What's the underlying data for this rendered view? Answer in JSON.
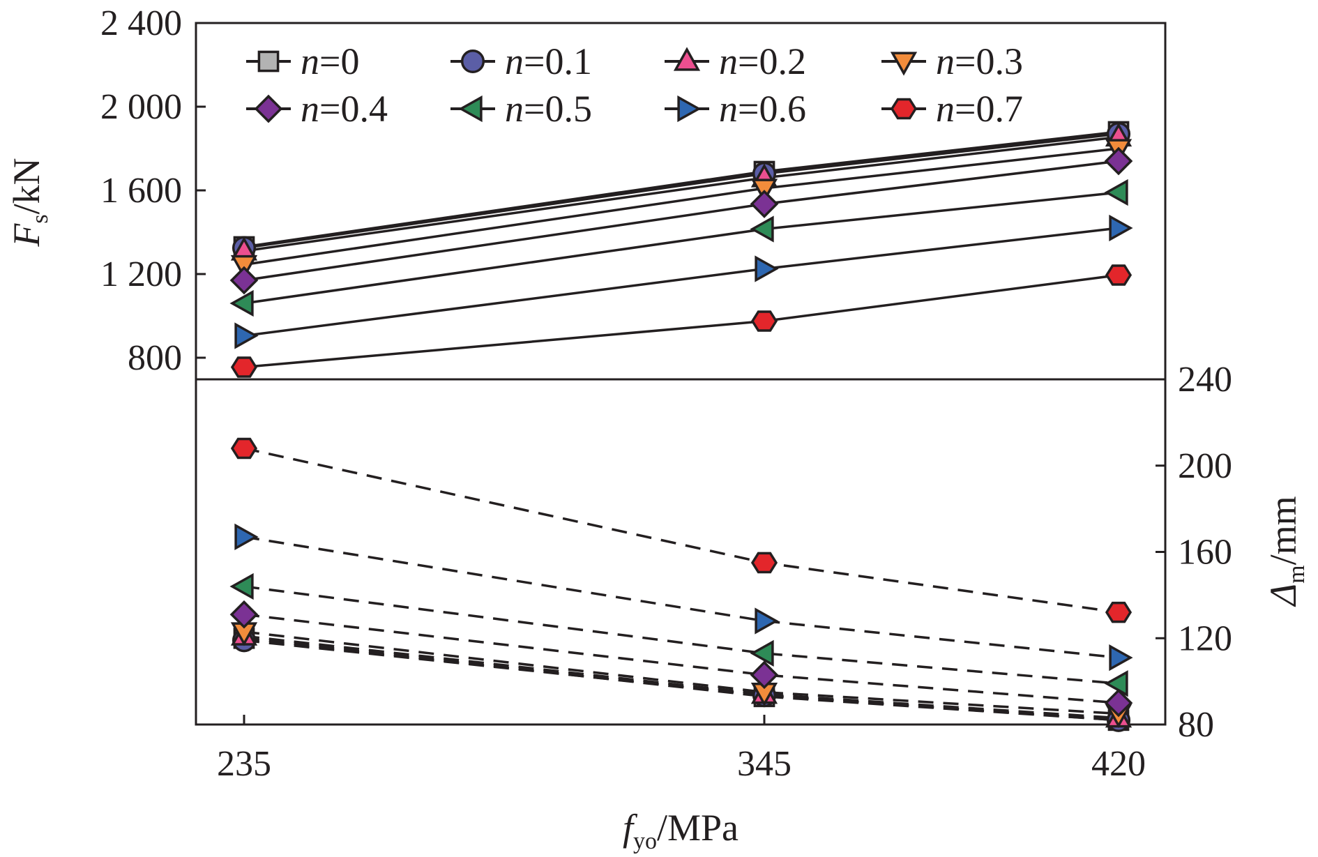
{
  "chart_data": [
    {
      "type": "line",
      "panel": "upper",
      "x": [
        235,
        345,
        420
      ],
      "xlabel": {
        "main": "f",
        "sub": "yo",
        "unit": "/MPa"
      },
      "xticks": [
        "235",
        "345",
        "420"
      ],
      "ylabel": {
        "main": "F",
        "sub": "s",
        "unit": "/kN"
      },
      "ylim": [
        700,
        2400
      ],
      "yticks": [
        800,
        1200,
        1600,
        2000,
        2400
      ],
      "ytick_labels": [
        "800",
        "1 200",
        "1 600",
        "2 000",
        "2 400"
      ],
      "line_style": "solid",
      "legend_position": "top",
      "series": [
        {
          "name": "n=0",
          "label_var": "n",
          "label_val": "=0",
          "marker": "square",
          "color": "#b3b3b3",
          "values": [
            1330,
            1690,
            1880
          ]
        },
        {
          "name": "n=0.1",
          "label_var": "n",
          "label_val": "=0.1",
          "marker": "circle",
          "color": "#5b5ea6",
          "values": [
            1325,
            1680,
            1870
          ]
        },
        {
          "name": "n=0.2",
          "label_var": "n",
          "label_val": "=0.2",
          "marker": "triangle-up",
          "color": "#ec4f8f",
          "values": [
            1310,
            1660,
            1855
          ]
        },
        {
          "name": "n=0.3",
          "label_var": "n",
          "label_val": "=0.3",
          "marker": "triangle-down",
          "color": "#f28c3b",
          "values": [
            1245,
            1610,
            1800
          ]
        },
        {
          "name": "n=0.4",
          "label_var": "n",
          "label_val": "=0.4",
          "marker": "diamond",
          "color": "#7b3294",
          "values": [
            1170,
            1535,
            1740
          ]
        },
        {
          "name": "n=0.5",
          "label_var": "n",
          "label_val": "=0.5",
          "marker": "triangle-left",
          "color": "#2e8b57",
          "values": [
            1060,
            1415,
            1590
          ]
        },
        {
          "name": "n=0.6",
          "label_var": "n",
          "label_val": "=0.6",
          "marker": "triangle-right",
          "color": "#2e67b1",
          "values": [
            905,
            1225,
            1420
          ]
        },
        {
          "name": "n=0.7",
          "label_var": "n",
          "label_val": "=0.7",
          "marker": "hexagon",
          "color": "#e3262b",
          "values": [
            755,
            975,
            1195
          ]
        }
      ]
    },
    {
      "type": "line",
      "panel": "lower",
      "x": [
        235,
        345,
        420
      ],
      "ylabel": {
        "main": "Δ",
        "sub": "m",
        "unit": "/mm"
      },
      "ylim": [
        80,
        240
      ],
      "yticks": [
        80,
        120,
        160,
        200,
        240
      ],
      "ytick_labels": [
        "80",
        "120",
        "160",
        "200",
        "240"
      ],
      "y_axis_side": "right",
      "line_style": "dashed",
      "series": [
        {
          "name": "n=0",
          "marker": "square",
          "color": "#b3b3b3",
          "values": [
            120,
            93,
            82
          ]
        },
        {
          "name": "n=0.1",
          "marker": "circle",
          "color": "#5b5ea6",
          "values": [
            119,
            93.5,
            82
          ]
        },
        {
          "name": "n=0.2",
          "marker": "triangle-up",
          "color": "#ec4f8f",
          "values": [
            121,
            94,
            83
          ]
        },
        {
          "name": "n=0.3",
          "marker": "triangle-down",
          "color": "#f28c3b",
          "values": [
            123,
            95,
            85
          ]
        },
        {
          "name": "n=0.4",
          "marker": "diamond",
          "color": "#7b3294",
          "values": [
            131,
            103,
            90
          ]
        },
        {
          "name": "n=0.5",
          "marker": "triangle-left",
          "color": "#2e8b57",
          "values": [
            144,
            113,
            99
          ]
        },
        {
          "name": "n=0.6",
          "marker": "triangle-right",
          "color": "#2e67b1",
          "values": [
            167,
            128,
            111
          ]
        },
        {
          "name": "n=0.7",
          "marker": "hexagon",
          "color": "#e3262b",
          "values": [
            208,
            155,
            132
          ]
        }
      ]
    }
  ]
}
